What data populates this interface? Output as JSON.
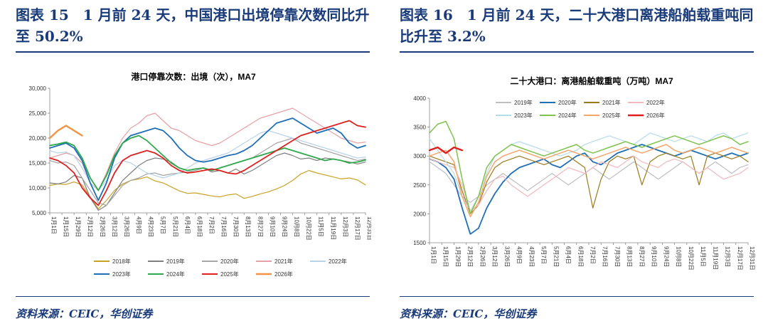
{
  "left_panel": {
    "heading": "图表 15　1 月前 24 天，中国港口出境停靠次数同比升至 50.2%",
    "source": "资料来源：CEIC，华创证券"
  },
  "right_panel": {
    "heading": "图表 16　1 月前 24 天，二十大港口离港船舶载重吨同比升至 3.2%",
    "source": "资料来源：CEIC，华创证券"
  },
  "chart_data": [
    {
      "type": "line",
      "title": "港口停靠次数：出境（次），MA7",
      "ylim": [
        5000,
        30000
      ],
      "yticks": [
        "5,000",
        "10,000",
        "15,000",
        "20,000",
        "25,000",
        "30,000"
      ],
      "xticks": [
        "1月1日",
        "1月15日",
        "1月29日",
        "2月12日",
        "2月26日",
        "3月12日",
        "3月26日",
        "4月9日",
        "4月23日",
        "5月7日",
        "5月21日",
        "6月4日",
        "6月18日",
        "7月2日",
        "7月16日",
        "7月30日",
        "8月13日",
        "8月27日",
        "9月10日",
        "9月24日",
        "10月8日",
        "10月22日",
        "11月5日",
        "11月19日",
        "12月3日",
        "12月17日",
        "12月31日"
      ],
      "series": [
        {
          "name": "2018年",
          "color": "#c9a227",
          "width": 1.2,
          "values": [
            10500,
            10800,
            10700,
            11200,
            10600,
            8200,
            5800,
            7500,
            9500,
            10800,
            11500,
            11800,
            12200,
            11400,
            11000,
            10200,
            9400,
            8900,
            9000,
            8700,
            8400,
            8200,
            8600,
            8800,
            7900,
            8300,
            8800,
            9200,
            9800,
            10500,
            11500,
            12800,
            13500,
            13000,
            12600,
            12200,
            11800,
            12000,
            11600,
            10600
          ]
        },
        {
          "name": "2019年",
          "color": "#808080",
          "width": 1.2,
          "values": [
            11000,
            10800,
            11200,
            12500,
            12000,
            8000,
            5500,
            6500,
            9000,
            11500,
            13000,
            14500,
            15500,
            16000,
            15800,
            15200,
            14000,
            13500,
            13800,
            14000,
            13200,
            13500,
            13000,
            13800,
            12800,
            13500,
            14500,
            15500,
            16500,
            17000,
            16500,
            15800,
            16000,
            15500,
            16000,
            15800,
            15500,
            15200,
            14800,
            15200
          ]
        },
        {
          "name": "2020年",
          "color": "#a6a6a6",
          "width": 1.2,
          "values": [
            15500,
            15000,
            15200,
            14500,
            12000,
            9500,
            7000,
            6500,
            8500,
            10500,
            11500,
            12000,
            12800,
            13000,
            12500,
            12800,
            13000,
            13200,
            13500,
            14000,
            13500,
            14000,
            14500,
            15000,
            15500,
            16000,
            17000,
            18000,
            19000,
            19500,
            20000,
            19000,
            18500,
            18000,
            17500,
            17000,
            16500,
            16000,
            15500,
            15800
          ]
        },
        {
          "name": "2021年",
          "color": "#e6a1a8",
          "width": 1.2,
          "values": [
            16000,
            16500,
            17000,
            16500,
            15000,
            11000,
            9500,
            13000,
            17000,
            20000,
            22000,
            23000,
            24500,
            25000,
            23500,
            22000,
            21500,
            20500,
            19500,
            19000,
            18500,
            19000,
            20000,
            21000,
            22000,
            23000,
            24000,
            24500,
            25000,
            25500,
            26000,
            25000,
            24000,
            23000,
            22000,
            21000,
            20000,
            19500,
            19000,
            19200
          ]
        },
        {
          "name": "2022年",
          "color": "#b8d3e8",
          "width": 1.2,
          "values": [
            17500,
            17000,
            17200,
            16500,
            14000,
            11000,
            9500,
            11500,
            14500,
            15500,
            15000,
            14000,
            13000,
            12500,
            12000,
            12500,
            13000,
            14000,
            15000,
            15500,
            16000,
            16500,
            17000,
            18000,
            19000,
            20000,
            21000,
            21500,
            21000,
            20500,
            20000,
            19500,
            19000,
            18500,
            18000,
            17500,
            17000,
            16500,
            16000,
            16200
          ]
        },
        {
          "name": "2023年",
          "color": "#1f6fb7",
          "width": 1.8,
          "values": [
            18000,
            18500,
            19000,
            18000,
            15500,
            11000,
            7500,
            11000,
            16000,
            19000,
            20500,
            21000,
            21500,
            22000,
            21500,
            20000,
            18000,
            16500,
            15500,
            15200,
            15500,
            16000,
            16500,
            16800,
            17500,
            18500,
            20000,
            21500,
            23000,
            23500,
            24000,
            23000,
            22000,
            21000,
            21500,
            22000,
            21000,
            19000,
            18000,
            18500
          ]
        },
        {
          "name": "2024年",
          "color": "#2ea84a",
          "width": 1.8,
          "values": [
            18500,
            18800,
            19200,
            18500,
            16000,
            12000,
            9500,
            12500,
            16500,
            19000,
            20000,
            20500,
            19500,
            18000,
            16500,
            15000,
            14000,
            13500,
            13800,
            14000,
            13500,
            14000,
            14500,
            15000,
            15500,
            16000,
            16500,
            17000,
            17500,
            18000,
            17500,
            17000,
            16500,
            16000,
            15500,
            15800,
            15500,
            15000,
            15200,
            15600
          ]
        },
        {
          "name": "2025年",
          "color": "#e02020",
          "width": 1.8,
          "values": [
            16000,
            15500,
            14500,
            13000,
            10000,
            8000,
            6500,
            9500,
            13000,
            15500,
            16500,
            17000,
            17500,
            17000,
            16000,
            14500,
            13500,
            13000,
            13200,
            13500,
            13800,
            13500,
            13000,
            12800,
            13500,
            14500,
            15500,
            16500,
            17500,
            18500,
            19500,
            20500,
            21000,
            21500,
            22000,
            22500,
            23000,
            23500,
            22500,
            22200
          ]
        },
        {
          "name": "2026年",
          "color": "#f39244",
          "width": 2.4,
          "values": [
            20000,
            21500,
            22500,
            21500,
            20500
          ]
        }
      ]
    },
    {
      "type": "line",
      "title": "二十大港口：离港船舶载重吨（万吨）MA7",
      "ylim": [
        1500,
        4000
      ],
      "yticks": [
        "1500",
        "2000",
        "2500",
        "3000",
        "3500",
        "4000"
      ],
      "xticks": [
        "1月1日",
        "1月15日",
        "1月29日",
        "2月12日",
        "2月26日",
        "3月12日",
        "3月26日",
        "4月9日",
        "4月23日",
        "5月7日",
        "5月21日",
        "6月4日",
        "6月18日",
        "7月2日",
        "7月16日",
        "7月30日",
        "8月13日",
        "8月27日",
        "9月10日",
        "9月24日",
        "10月8日",
        "10月22日",
        "11月5日",
        "11月19日",
        "12月3日",
        "12月17日",
        "12月31日"
      ],
      "series": [
        {
          "name": "2019年",
          "color": "#bfbfbf",
          "width": 1.2,
          "values": [
            2900,
            2800,
            2700,
            2500,
            2300,
            2200,
            2300,
            2500,
            2600,
            2700,
            2600,
            2500,
            2400,
            2500,
            2600,
            2700,
            2600,
            2500,
            2600,
            2700,
            2800,
            2700,
            2600,
            2700,
            2800,
            2900,
            2800,
            2700,
            2600,
            2700,
            2800,
            2900,
            2800,
            2700,
            2800,
            2900,
            2800,
            2700,
            2800,
            2850
          ]
        },
        {
          "name": "2020年",
          "color": "#1f6fb7",
          "width": 1.8,
          "values": [
            2950,
            2900,
            2800,
            2600,
            2100,
            1650,
            1750,
            2100,
            2350,
            2550,
            2700,
            2800,
            2850,
            2900,
            2950,
            2850,
            2800,
            2900,
            3000,
            3050,
            2900,
            2850,
            2950,
            3050,
            3100,
            3150,
            3200,
            3150,
            3100,
            3050,
            3000,
            3050,
            3100,
            3050,
            3000,
            2950,
            3000,
            3050,
            3000,
            3050
          ]
        },
        {
          "name": "2021年",
          "color": "#9a7b1c",
          "width": 1.2,
          "values": [
            3000,
            2950,
            2900,
            2850,
            2400,
            2000,
            2150,
            2550,
            2800,
            2900,
            2950,
            3000,
            2950,
            2900,
            2850,
            2900,
            2950,
            3000,
            2900,
            2800,
            2100,
            2600,
            2900,
            3000,
            2950,
            3000,
            2500,
            2900,
            3000,
            3050,
            3000,
            2950,
            3000,
            2500,
            3000,
            3050,
            3000,
            2950,
            3000,
            2900
          ]
        },
        {
          "name": "2022年",
          "color": "#f2b8bd",
          "width": 1.2,
          "values": [
            2950,
            2900,
            2850,
            2800,
            2500,
            2050,
            2150,
            2400,
            2600,
            2650,
            2500,
            2400,
            2300,
            2400,
            2500,
            2600,
            2700,
            2800,
            2750,
            2700,
            2800,
            2900,
            2850,
            2800,
            2900,
            3000,
            2900,
            2850,
            2800,
            2900,
            2950,
            2900,
            2800,
            2700,
            2800,
            2700,
            2600,
            2650,
            2700,
            2800
          ]
        },
        {
          "name": "2023年",
          "color": "#b6dcea",
          "width": 1.2,
          "values": [
            3300,
            3100,
            2900,
            2700,
            2300,
            2050,
            2300,
            2700,
            3000,
            3100,
            3200,
            3250,
            3200,
            3150,
            3100,
            3050,
            3000,
            3050,
            3100,
            3200,
            3250,
            3300,
            3350,
            3300,
            3250,
            3200,
            3300,
            3400,
            3350,
            3300,
            3250,
            3300,
            3350,
            3300,
            3250,
            3350,
            3400,
            3300,
            3350,
            3400
          ]
        },
        {
          "name": "2024年",
          "color": "#7fc24d",
          "width": 1.5,
          "values": [
            3400,
            3550,
            3600,
            3300,
            2600,
            2000,
            2300,
            2800,
            3000,
            3100,
            3200,
            3150,
            3100,
            3050,
            3000,
            3050,
            3100,
            3150,
            3200,
            3100,
            3050,
            3100,
            3150,
            3200,
            3250,
            3200,
            3150,
            3200,
            3250,
            3300,
            3350,
            3300,
            3250,
            3200,
            3250,
            3300,
            3350,
            3300,
            3200,
            3250
          ]
        },
        {
          "name": "2025年",
          "color": "#f5a66b",
          "width": 1.5,
          "values": [
            3000,
            3050,
            3100,
            2900,
            2300,
            1950,
            2200,
            2650,
            2900,
            3000,
            3050,
            3100,
            3050,
            3000,
            2950,
            3000,
            3050,
            3100,
            3050,
            3000,
            2950,
            3000,
            3050,
            3100,
            3150,
            3100,
            3050,
            3100,
            3150,
            3200,
            3100,
            3050,
            3100,
            3150,
            3100,
            3050,
            3100,
            3150,
            3100,
            3050
          ]
        },
        {
          "name": "2026年",
          "color": "#e02020",
          "width": 2.4,
          "values": [
            3100,
            3150,
            3050,
            3150,
            3100
          ]
        }
      ]
    }
  ]
}
